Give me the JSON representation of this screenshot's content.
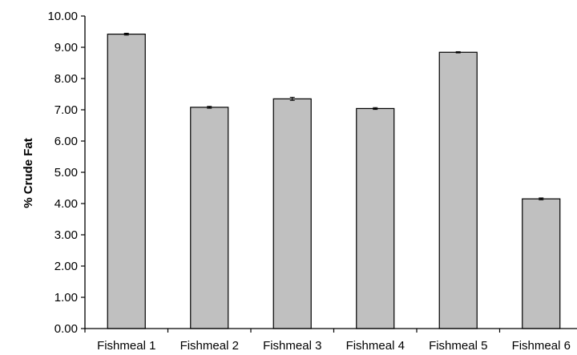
{
  "chart_data": {
    "type": "bar",
    "title": "",
    "xlabel": "",
    "ylabel": "% Crude Fat",
    "categories": [
      "Fishmeal 1",
      "Fishmeal 2",
      "Fishmeal 3",
      "Fishmeal 4",
      "Fishmeal 5",
      "Fishmeal 6"
    ],
    "values": [
      9.42,
      7.08,
      7.35,
      7.04,
      8.84,
      4.15
    ],
    "error": [
      0.03,
      0.03,
      0.05,
      0.03,
      0.02,
      0.03
    ],
    "ylim": [
      0,
      10
    ],
    "yticks": [
      "0.00",
      "1.00",
      "2.00",
      "3.00",
      "4.00",
      "5.00",
      "6.00",
      "7.00",
      "8.00",
      "9.00",
      "10.00"
    ],
    "grid": false,
    "legend": "none",
    "colors": {
      "bar_fill": "#c0c0c0",
      "bar_stroke": "#000000",
      "axis": "#000000"
    }
  }
}
